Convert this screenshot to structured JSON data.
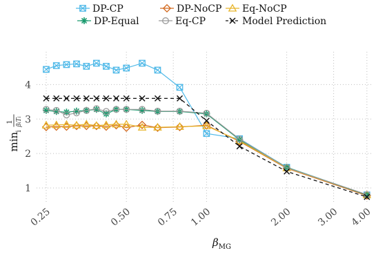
{
  "chart_data": {
    "type": "line",
    "xlabel": "β",
    "xlabel_sub": "MG",
    "ylabel": "min",
    "ylabel_sub": "i",
    "ylabel_frac_num": "1",
    "ylabel_frac_den": "β",
    "ylabel_frac_den_sub": "i",
    "ylabel_frac_den_T": "T",
    "ylabel_frac_den_T_sub": "i",
    "x_scale": "log",
    "xlim": [
      0.23,
      4.2
    ],
    "ylim": [
      0.6,
      4.95
    ],
    "x_ticks": [
      0.25,
      0.5,
      0.75,
      1.0,
      2.0,
      3.0,
      4.0
    ],
    "x_tick_labels": [
      "0.25",
      "0.50",
      "0.75",
      "1.00",
      "2.00",
      "3.00",
      "4.00"
    ],
    "y_ticks": [
      1,
      2,
      3,
      4
    ],
    "y_tick_labels": [
      "1",
      "2",
      "3",
      "4"
    ],
    "grid": true,
    "legend_position": "top",
    "series": [
      {
        "name": "DP-CP",
        "color": "#4db8e8",
        "marker": "square-x",
        "dash": "solid",
        "x": [
          0.25,
          0.273,
          0.298,
          0.325,
          0.354,
          0.386,
          0.42,
          0.458,
          0.5,
          0.573,
          0.655,
          0.793,
          1.0,
          1.33,
          2.0,
          4.0
        ],
        "y": [
          4.44,
          4.55,
          4.58,
          4.6,
          4.53,
          4.62,
          4.53,
          4.42,
          4.48,
          4.62,
          4.42,
          3.92,
          2.58,
          2.43,
          1.6,
          0.8
        ]
      },
      {
        "name": "DP-NoCP",
        "color": "#d2691e",
        "marker": "diamond",
        "dash": "solid",
        "x": [
          0.25,
          0.273,
          0.298,
          0.325,
          0.354,
          0.386,
          0.42,
          0.458,
          0.5,
          0.573,
          0.655,
          0.793,
          1.0,
          1.33,
          2.0,
          4.0
        ],
        "y": [
          2.77,
          2.78,
          2.78,
          2.8,
          2.8,
          2.8,
          2.78,
          2.82,
          2.75,
          2.83,
          2.75,
          2.77,
          2.82,
          2.35,
          1.57,
          0.78
        ]
      },
      {
        "name": "Eq-NoCP",
        "color": "#e8b52a",
        "marker": "triangle",
        "dash": "solid",
        "x": [
          0.25,
          0.273,
          0.298,
          0.325,
          0.354,
          0.386,
          0.42,
          0.458,
          0.5,
          0.573,
          0.655,
          0.793,
          1.0,
          1.33,
          2.0,
          4.0
        ],
        "y": [
          2.82,
          2.83,
          2.84,
          2.82,
          2.85,
          2.81,
          2.83,
          2.85,
          2.85,
          2.76,
          2.76,
          2.78,
          2.8,
          2.37,
          1.58,
          0.8
        ]
      },
      {
        "name": "DP-Equal",
        "color": "#1a9a6e",
        "marker": "asterisk",
        "dash": "solid",
        "x": [
          0.25,
          0.273,
          0.298,
          0.325,
          0.354,
          0.386,
          0.42,
          0.458,
          0.5,
          0.573,
          0.655,
          0.793,
          1.0,
          1.33,
          2.0,
          4.0
        ],
        "y": [
          3.25,
          3.22,
          3.2,
          3.23,
          3.25,
          3.28,
          3.15,
          3.28,
          3.28,
          3.25,
          3.22,
          3.22,
          3.15,
          2.4,
          1.6,
          0.8
        ]
      },
      {
        "name": "Eq-CP",
        "color": "#9a9a9a",
        "marker": "circle",
        "dash": "solid",
        "x": [
          0.25,
          0.273,
          0.298,
          0.325,
          0.354,
          0.386,
          0.42,
          0.458,
          0.5,
          0.573,
          0.655,
          0.793,
          1.0,
          1.33,
          2.0,
          4.0
        ],
        "y": [
          3.28,
          3.25,
          3.12,
          3.18,
          3.25,
          3.3,
          3.22,
          3.28,
          3.28,
          3.28,
          3.23,
          3.23,
          3.17,
          2.42,
          1.59,
          0.81
        ]
      },
      {
        "name": "Model Prediction",
        "color": "#111111",
        "marker": "x",
        "dash": "dashed",
        "x": [
          0.25,
          0.273,
          0.298,
          0.325,
          0.354,
          0.386,
          0.42,
          0.458,
          0.5,
          0.573,
          0.655,
          0.793,
          1.0,
          1.33,
          2.0,
          4.0
        ],
        "y": [
          3.6,
          3.6,
          3.6,
          3.6,
          3.6,
          3.6,
          3.6,
          3.6,
          3.6,
          3.6,
          3.6,
          3.6,
          2.95,
          2.21,
          1.48,
          0.74
        ]
      }
    ],
    "legend": {
      "rows": [
        [
          {
            "series": 0,
            "label": "DP-CP"
          },
          {
            "series": 1,
            "label": "DP-NoCP"
          },
          {
            "series": 2,
            "label": "Eq-NoCP"
          }
        ],
        [
          {
            "series": 3,
            "label": "DP-Equal"
          },
          {
            "series": 4,
            "label": "Eq-CP"
          },
          {
            "series": 5,
            "label": "Model Prediction"
          }
        ]
      ]
    }
  }
}
